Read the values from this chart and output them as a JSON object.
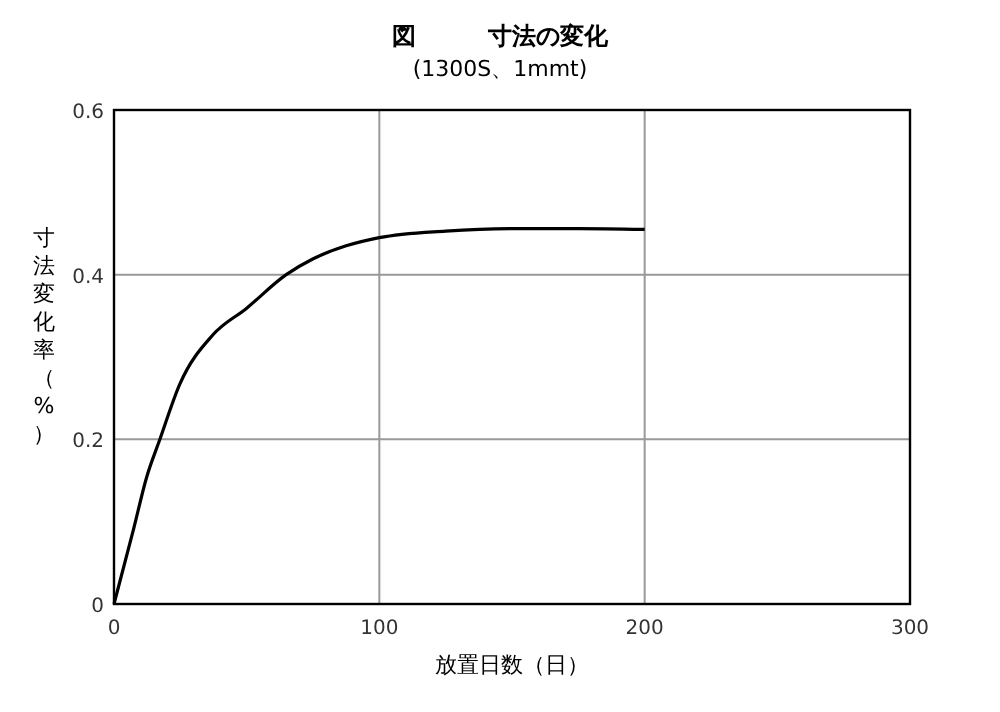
{
  "chart_data": {
    "type": "line",
    "title": "図　　　寸法の変化",
    "subtitle": "(1300S、1mmt)",
    "xlabel": "放置日数（日）",
    "ylabel": "寸法変化率（%）",
    "x": [
      0,
      7.3,
      12.3,
      17.3,
      24.8,
      37.3,
      49.9,
      64.9,
      74.9,
      87.5,
      100,
      125,
      150,
      175,
      200
    ],
    "series": [
      {
        "color": "#000000",
        "values": [
          0,
          0.09,
          0.154,
          0.2,
          0.267,
          0.327,
          0.359,
          0.4,
          0.419,
          0.435,
          0.445,
          0.453,
          0.456,
          0.456,
          0.455
        ]
      }
    ],
    "xlim": [
      0,
      300
    ],
    "xticks": [
      0,
      100,
      200,
      300
    ],
    "ylim": [
      0,
      0.6
    ],
    "yticks": [
      0,
      0.2,
      0.4,
      0.6
    ],
    "grid": true,
    "marker": "none",
    "line_style": "solid"
  }
}
